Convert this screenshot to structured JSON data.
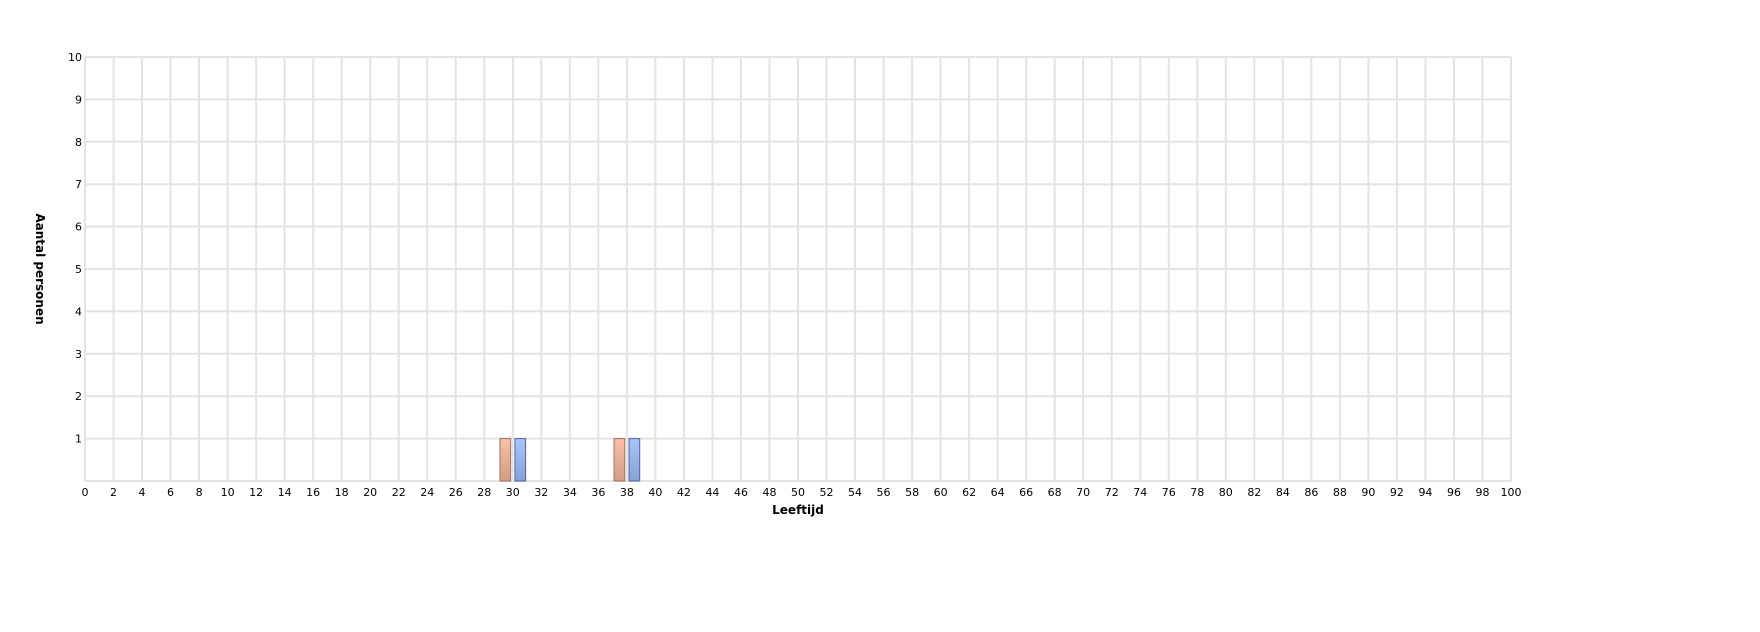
{
  "chart_data": {
    "type": "bar",
    "title": "",
    "xlabel": "Leeftijd",
    "ylabel": "Aantal personen",
    "xlim": [
      0,
      100
    ],
    "ylim": [
      0,
      10
    ],
    "x_ticks": [
      0,
      2,
      4,
      6,
      8,
      10,
      12,
      14,
      16,
      18,
      20,
      22,
      24,
      26,
      28,
      30,
      32,
      34,
      36,
      38,
      40,
      42,
      44,
      46,
      48,
      50,
      52,
      54,
      56,
      58,
      60,
      62,
      64,
      66,
      68,
      70,
      72,
      74,
      76,
      78,
      80,
      82,
      84,
      86,
      88,
      90,
      92,
      94,
      96,
      98,
      100
    ],
    "y_ticks": [
      1,
      2,
      3,
      4,
      5,
      6,
      7,
      8,
      9,
      10
    ],
    "grid": true,
    "legend": "none",
    "categories": [
      30,
      38
    ],
    "series": [
      {
        "values": [
          1,
          1
        ],
        "color": "#f5b49a",
        "border": "#a0705f"
      },
      {
        "values": [
          1,
          1
        ],
        "color": "#a3bcf5",
        "border": "#4e66a0"
      }
    ]
  }
}
